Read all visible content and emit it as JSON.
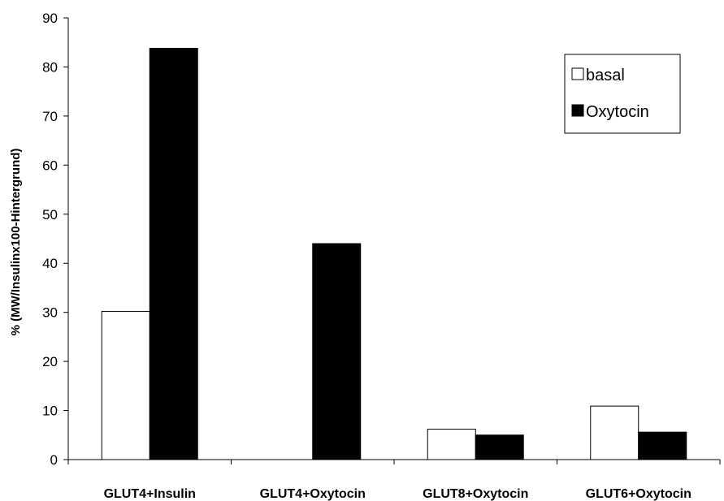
{
  "chart_data": {
    "type": "bar",
    "title": "",
    "xlabel": "",
    "ylabel": "% (MW/Insulinx100-Hintergrund)",
    "ylim": [
      0,
      90
    ],
    "yticks": [
      0,
      10,
      20,
      30,
      40,
      50,
      60,
      70,
      80,
      90
    ],
    "grid": false,
    "legend_position": "top-right",
    "categories": [
      "GLUT4+Insulin",
      "GLUT4+Oxytocin",
      "GLUT8+Oxytocin",
      "GLUT6+Oxytocin"
    ],
    "series": [
      {
        "name": "basal",
        "values": [
          30.2,
          0,
          6.2,
          10.9
        ],
        "fill": "#ffffff",
        "stroke": "#000000"
      },
      {
        "name": "Oxytocin",
        "values": [
          83.8,
          44.0,
          5.0,
          5.6
        ],
        "fill": "#000000",
        "stroke": "#000000"
      }
    ]
  }
}
